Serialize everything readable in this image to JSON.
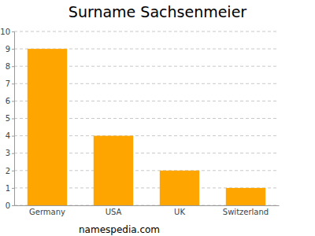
{
  "chart_data": {
    "type": "bar",
    "title": "Surname Sachsenmeier",
    "categories": [
      "Germany",
      "USA",
      "UK",
      "Switzerland"
    ],
    "values": [
      9,
      4,
      2,
      1
    ],
    "color": "#ffa500",
    "ylim": [
      0,
      10
    ],
    "yticks": [
      0,
      1,
      2,
      3,
      4,
      5,
      6,
      7,
      8,
      9,
      10
    ],
    "grid": true,
    "annotations": [
      "namespedia.com"
    ]
  }
}
